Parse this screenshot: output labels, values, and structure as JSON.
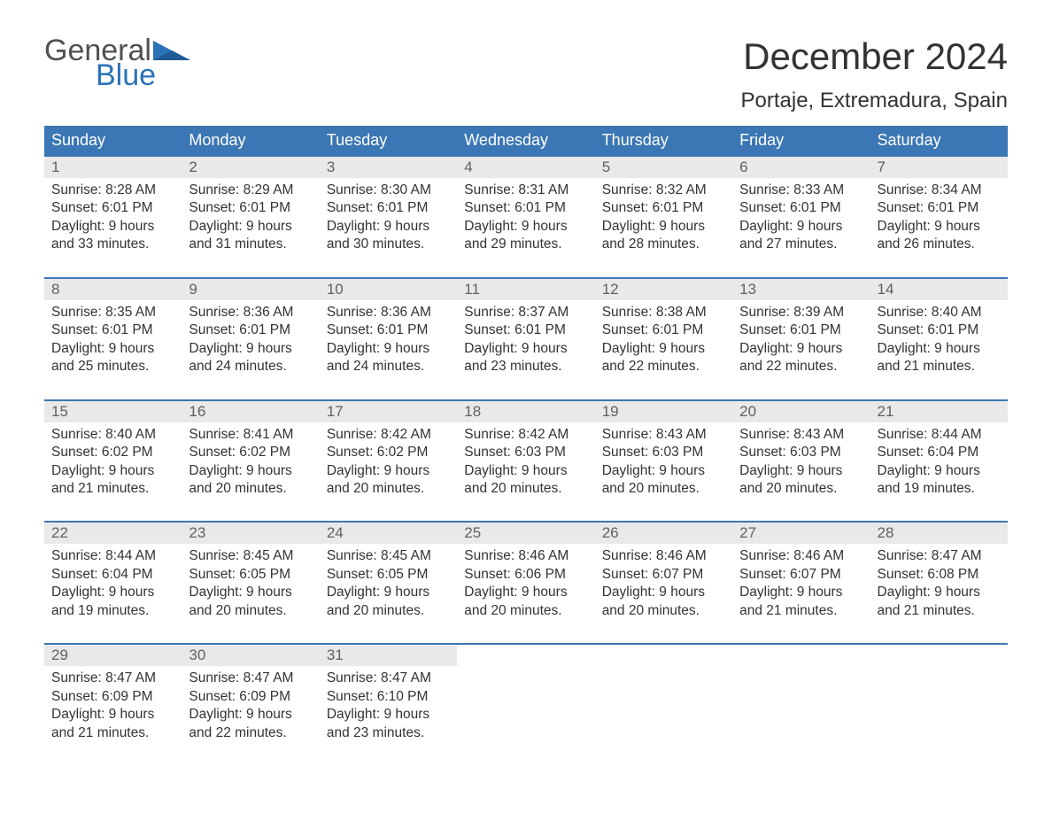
{
  "logo": {
    "general": "General",
    "blue": "Blue"
  },
  "title": "December 2024",
  "location": "Portaje, Extremadura, Spain",
  "colors": {
    "header_bg": "#3b77b4",
    "header_text": "#ffffff",
    "daynum_bg": "#e9e9e9",
    "daynum_text": "#606060",
    "body_text": "#333333",
    "logo_gray": "#505050",
    "logo_blue": "#2b73b8",
    "week_border": "#3b77b4"
  },
  "typography": {
    "title_fontsize": 42,
    "location_fontsize": 24,
    "dayheader_fontsize": 18,
    "daynum_fontsize": 17,
    "body_fontsize": 15.5,
    "logo_fontsize": 34
  },
  "day_headers": [
    "Sunday",
    "Monday",
    "Tuesday",
    "Wednesday",
    "Thursday",
    "Friday",
    "Saturday"
  ],
  "weeks": [
    [
      {
        "num": "1",
        "sunrise": "Sunrise: 8:28 AM",
        "sunset": "Sunset: 6:01 PM",
        "day1": "Daylight: 9 hours",
        "day2": "and 33 minutes."
      },
      {
        "num": "2",
        "sunrise": "Sunrise: 8:29 AM",
        "sunset": "Sunset: 6:01 PM",
        "day1": "Daylight: 9 hours",
        "day2": "and 31 minutes."
      },
      {
        "num": "3",
        "sunrise": "Sunrise: 8:30 AM",
        "sunset": "Sunset: 6:01 PM",
        "day1": "Daylight: 9 hours",
        "day2": "and 30 minutes."
      },
      {
        "num": "4",
        "sunrise": "Sunrise: 8:31 AM",
        "sunset": "Sunset: 6:01 PM",
        "day1": "Daylight: 9 hours",
        "day2": "and 29 minutes."
      },
      {
        "num": "5",
        "sunrise": "Sunrise: 8:32 AM",
        "sunset": "Sunset: 6:01 PM",
        "day1": "Daylight: 9 hours",
        "day2": "and 28 minutes."
      },
      {
        "num": "6",
        "sunrise": "Sunrise: 8:33 AM",
        "sunset": "Sunset: 6:01 PM",
        "day1": "Daylight: 9 hours",
        "day2": "and 27 minutes."
      },
      {
        "num": "7",
        "sunrise": "Sunrise: 8:34 AM",
        "sunset": "Sunset: 6:01 PM",
        "day1": "Daylight: 9 hours",
        "day2": "and 26 minutes."
      }
    ],
    [
      {
        "num": "8",
        "sunrise": "Sunrise: 8:35 AM",
        "sunset": "Sunset: 6:01 PM",
        "day1": "Daylight: 9 hours",
        "day2": "and 25 minutes."
      },
      {
        "num": "9",
        "sunrise": "Sunrise: 8:36 AM",
        "sunset": "Sunset: 6:01 PM",
        "day1": "Daylight: 9 hours",
        "day2": "and 24 minutes."
      },
      {
        "num": "10",
        "sunrise": "Sunrise: 8:36 AM",
        "sunset": "Sunset: 6:01 PM",
        "day1": "Daylight: 9 hours",
        "day2": "and 24 minutes."
      },
      {
        "num": "11",
        "sunrise": "Sunrise: 8:37 AM",
        "sunset": "Sunset: 6:01 PM",
        "day1": "Daylight: 9 hours",
        "day2": "and 23 minutes."
      },
      {
        "num": "12",
        "sunrise": "Sunrise: 8:38 AM",
        "sunset": "Sunset: 6:01 PM",
        "day1": "Daylight: 9 hours",
        "day2": "and 22 minutes."
      },
      {
        "num": "13",
        "sunrise": "Sunrise: 8:39 AM",
        "sunset": "Sunset: 6:01 PM",
        "day1": "Daylight: 9 hours",
        "day2": "and 22 minutes."
      },
      {
        "num": "14",
        "sunrise": "Sunrise: 8:40 AM",
        "sunset": "Sunset: 6:01 PM",
        "day1": "Daylight: 9 hours",
        "day2": "and 21 minutes."
      }
    ],
    [
      {
        "num": "15",
        "sunrise": "Sunrise: 8:40 AM",
        "sunset": "Sunset: 6:02 PM",
        "day1": "Daylight: 9 hours",
        "day2": "and 21 minutes."
      },
      {
        "num": "16",
        "sunrise": "Sunrise: 8:41 AM",
        "sunset": "Sunset: 6:02 PM",
        "day1": "Daylight: 9 hours",
        "day2": "and 20 minutes."
      },
      {
        "num": "17",
        "sunrise": "Sunrise: 8:42 AM",
        "sunset": "Sunset: 6:02 PM",
        "day1": "Daylight: 9 hours",
        "day2": "and 20 minutes."
      },
      {
        "num": "18",
        "sunrise": "Sunrise: 8:42 AM",
        "sunset": "Sunset: 6:03 PM",
        "day1": "Daylight: 9 hours",
        "day2": "and 20 minutes."
      },
      {
        "num": "19",
        "sunrise": "Sunrise: 8:43 AM",
        "sunset": "Sunset: 6:03 PM",
        "day1": "Daylight: 9 hours",
        "day2": "and 20 minutes."
      },
      {
        "num": "20",
        "sunrise": "Sunrise: 8:43 AM",
        "sunset": "Sunset: 6:03 PM",
        "day1": "Daylight: 9 hours",
        "day2": "and 20 minutes."
      },
      {
        "num": "21",
        "sunrise": "Sunrise: 8:44 AM",
        "sunset": "Sunset: 6:04 PM",
        "day1": "Daylight: 9 hours",
        "day2": "and 19 minutes."
      }
    ],
    [
      {
        "num": "22",
        "sunrise": "Sunrise: 8:44 AM",
        "sunset": "Sunset: 6:04 PM",
        "day1": "Daylight: 9 hours",
        "day2": "and 19 minutes."
      },
      {
        "num": "23",
        "sunrise": "Sunrise: 8:45 AM",
        "sunset": "Sunset: 6:05 PM",
        "day1": "Daylight: 9 hours",
        "day2": "and 20 minutes."
      },
      {
        "num": "24",
        "sunrise": "Sunrise: 8:45 AM",
        "sunset": "Sunset: 6:05 PM",
        "day1": "Daylight: 9 hours",
        "day2": "and 20 minutes."
      },
      {
        "num": "25",
        "sunrise": "Sunrise: 8:46 AM",
        "sunset": "Sunset: 6:06 PM",
        "day1": "Daylight: 9 hours",
        "day2": "and 20 minutes."
      },
      {
        "num": "26",
        "sunrise": "Sunrise: 8:46 AM",
        "sunset": "Sunset: 6:07 PM",
        "day1": "Daylight: 9 hours",
        "day2": "and 20 minutes."
      },
      {
        "num": "27",
        "sunrise": "Sunrise: 8:46 AM",
        "sunset": "Sunset: 6:07 PM",
        "day1": "Daylight: 9 hours",
        "day2": "and 21 minutes."
      },
      {
        "num": "28",
        "sunrise": "Sunrise: 8:47 AM",
        "sunset": "Sunset: 6:08 PM",
        "day1": "Daylight: 9 hours",
        "day2": "and 21 minutes."
      }
    ],
    [
      {
        "num": "29",
        "sunrise": "Sunrise: 8:47 AM",
        "sunset": "Sunset: 6:09 PM",
        "day1": "Daylight: 9 hours",
        "day2": "and 21 minutes."
      },
      {
        "num": "30",
        "sunrise": "Sunrise: 8:47 AM",
        "sunset": "Sunset: 6:09 PM",
        "day1": "Daylight: 9 hours",
        "day2": "and 22 minutes."
      },
      {
        "num": "31",
        "sunrise": "Sunrise: 8:47 AM",
        "sunset": "Sunset: 6:10 PM",
        "day1": "Daylight: 9 hours",
        "day2": "and 23 minutes."
      },
      null,
      null,
      null,
      null
    ]
  ]
}
